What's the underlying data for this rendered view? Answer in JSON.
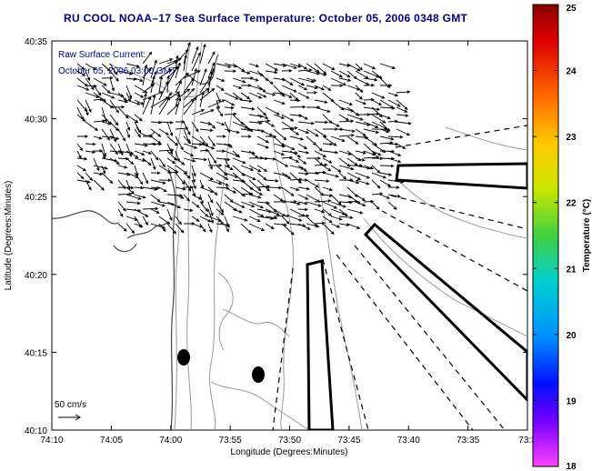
{
  "title": "RU COOL  NOAA–17  Sea Surface Temperature:  October 05, 2006 0348 GMT",
  "overlay": {
    "line1": "Raw Surface Current:",
    "line2": "October 05, 2006 03:00 GMT"
  },
  "scale_label": "50 cm/s",
  "axes": {
    "xlabel": "Longitude (Degrees:Minutes)",
    "ylabel": "Latitude (Degrees:Minutes)",
    "xticks": [
      "74:10",
      "74:05",
      "74:00",
      "73:55",
      "73:50",
      "73:45",
      "73:40",
      "73:35",
      "73:3"
    ],
    "yticks": [
      "40:35",
      "40:30",
      "40:25",
      "40:20",
      "40:15",
      "40:10"
    ]
  },
  "colorbar": {
    "label": "Temperature (°C)",
    "ticks": [
      "25",
      "24",
      "23",
      "22",
      "21",
      "20",
      "19",
      "18"
    ],
    "range": [
      18,
      25
    ]
  },
  "colors": {
    "title": "#00008b",
    "contour": "#999999",
    "coast": "#444444",
    "arrow": "#000000"
  }
}
